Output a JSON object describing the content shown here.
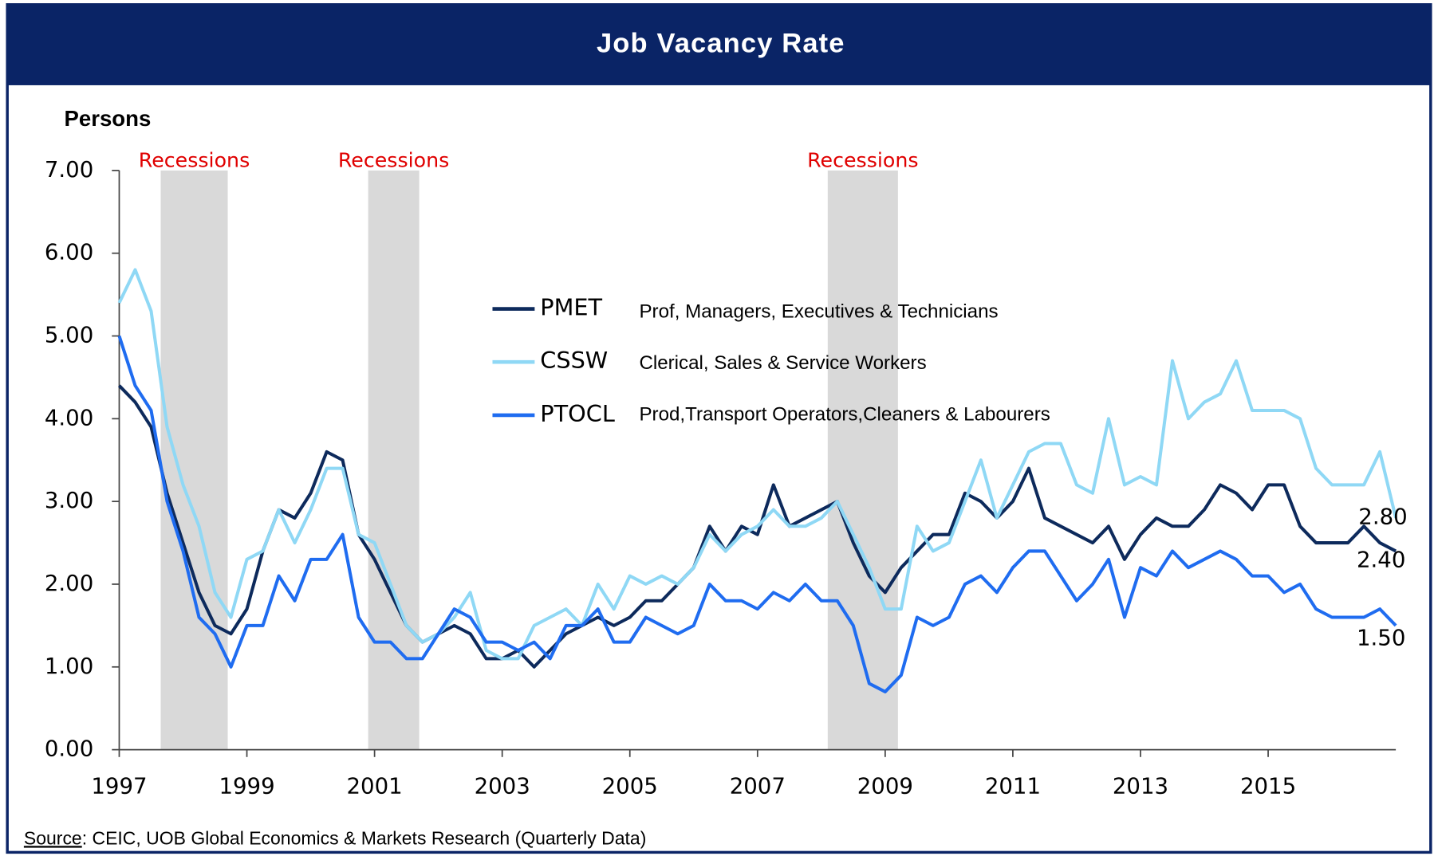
{
  "chart_data": {
    "type": "line",
    "title": "Job Vacancy Rate",
    "y_axis_label": "Persons",
    "source_label": "Source",
    "source_text": ": CEIC, UOB Global Economics & Markets Research (Quarterly Data)",
    "xlim": [
      1997,
      2017
    ],
    "xticks": [
      1997,
      1999,
      2001,
      2003,
      2005,
      2007,
      2009,
      2011,
      2013,
      2015
    ],
    "ylim": [
      0,
      7
    ],
    "yticks": [
      {
        "value": 0,
        "label": "0.00"
      },
      {
        "value": 1,
        "label": "1.00"
      },
      {
        "value": 2,
        "label": "2.00"
      },
      {
        "value": 3,
        "label": "3.00"
      },
      {
        "value": 4,
        "label": "4.00"
      },
      {
        "value": 5,
        "label": "5.00"
      },
      {
        "value": 6,
        "label": "6.00"
      },
      {
        "value": 7,
        "label": "7.00"
      }
    ],
    "recessions": [
      {
        "label": "Recessions",
        "start": 1997.65,
        "end": 1998.7
      },
      {
        "label": "Recessions",
        "start": 2000.9,
        "end": 2001.7
      },
      {
        "label": "Recessions",
        "start": 2008.1,
        "end": 2009.2
      }
    ],
    "x": [
      1997,
      1997.25,
      1997.5,
      1997.75,
      1998,
      1998.25,
      1998.5,
      1998.75,
      1999,
      1999.25,
      1999.5,
      1999.75,
      2000,
      2000.25,
      2000.5,
      2000.75,
      2001,
      2001.25,
      2001.5,
      2001.75,
      2002,
      2002.25,
      2002.5,
      2002.75,
      2003,
      2003.25,
      2003.5,
      2003.75,
      2004,
      2004.25,
      2004.5,
      2004.75,
      2005,
      2005.25,
      2005.5,
      2005.75,
      2006,
      2006.25,
      2006.5,
      2006.75,
      2007,
      2007.25,
      2007.5,
      2007.75,
      2008,
      2008.25,
      2008.5,
      2008.75,
      2009,
      2009.25,
      2009.5,
      2009.75,
      2010,
      2010.25,
      2010.5,
      2010.75,
      2011,
      2011.25,
      2011.5,
      2011.75,
      2012,
      2012.25,
      2012.5,
      2012.75,
      2013,
      2013.25,
      2013.5,
      2013.75,
      2014,
      2014.25,
      2014.5,
      2014.75,
      2015,
      2015.25,
      2015.5,
      2015.75,
      2016,
      2016.25,
      2016.5,
      2016.75,
      2017
    ],
    "series": [
      {
        "name": "PMET",
        "description": "Prof, Managers, Executives & Technicians",
        "color": "#0d2a5c",
        "end_label": "2.40",
        "values": [
          4.4,
          4.2,
          3.9,
          3.1,
          2.5,
          1.9,
          1.5,
          1.4,
          1.7,
          2.4,
          2.9,
          2.8,
          3.1,
          3.6,
          3.5,
          2.6,
          2.3,
          1.9,
          1.5,
          1.3,
          1.4,
          1.5,
          1.4,
          1.1,
          1.1,
          1.2,
          1.0,
          1.2,
          1.4,
          1.5,
          1.6,
          1.5,
          1.6,
          1.8,
          1.8,
          2.0,
          2.2,
          2.7,
          2.4,
          2.7,
          2.6,
          3.2,
          2.7,
          2.8,
          2.9,
          3.0,
          2.5,
          2.1,
          1.9,
          2.2,
          2.4,
          2.6,
          2.6,
          3.1,
          3.0,
          2.8,
          3.0,
          3.4,
          2.8,
          2.7,
          2.6,
          2.5,
          2.7,
          2.3,
          2.6,
          2.8,
          2.7,
          2.7,
          2.9,
          3.2,
          3.1,
          2.9,
          3.2,
          3.2,
          2.7,
          2.5,
          2.5,
          2.5,
          2.7,
          2.5,
          2.4
        ]
      },
      {
        "name": "CSSW",
        "description": "Clerical, Sales & Service Workers",
        "color": "#8fd8f5",
        "end_label": "2.80",
        "values": [
          5.4,
          5.8,
          5.3,
          3.9,
          3.2,
          2.7,
          1.9,
          1.6,
          2.3,
          2.4,
          2.9,
          2.5,
          2.9,
          3.4,
          3.4,
          2.6,
          2.5,
          2.0,
          1.5,
          1.3,
          1.4,
          1.6,
          1.9,
          1.2,
          1.1,
          1.1,
          1.5,
          1.6,
          1.7,
          1.5,
          2.0,
          1.7,
          2.1,
          2.0,
          2.1,
          2.0,
          2.2,
          2.6,
          2.4,
          2.6,
          2.7,
          2.9,
          2.7,
          2.7,
          2.8,
          3.0,
          2.6,
          2.2,
          1.7,
          1.7,
          2.7,
          2.4,
          2.5,
          3.0,
          3.5,
          2.8,
          3.2,
          3.6,
          3.7,
          3.7,
          3.2,
          3.1,
          4.0,
          3.2,
          3.3,
          3.2,
          4.7,
          4.0,
          4.2,
          4.3,
          4.7,
          4.1,
          4.1,
          4.1,
          4.0,
          3.4,
          3.2,
          3.2,
          3.2,
          3.6,
          2.8
        ]
      },
      {
        "name": "PTOCL",
        "description": "Prod,Transport Operators,Cleaners & Labourers",
        "color": "#1f6cf0",
        "end_label": "1.50",
        "values": [
          5.0,
          4.4,
          4.1,
          3.0,
          2.4,
          1.6,
          1.4,
          1.0,
          1.5,
          1.5,
          2.1,
          1.8,
          2.3,
          2.3,
          2.6,
          1.6,
          1.3,
          1.3,
          1.1,
          1.1,
          1.4,
          1.7,
          1.6,
          1.3,
          1.3,
          1.2,
          1.3,
          1.1,
          1.5,
          1.5,
          1.7,
          1.3,
          1.3,
          1.6,
          1.5,
          1.4,
          1.5,
          2.0,
          1.8,
          1.8,
          1.7,
          1.9,
          1.8,
          2.0,
          1.8,
          1.8,
          1.5,
          0.8,
          0.7,
          0.9,
          1.6,
          1.5,
          1.6,
          2.0,
          2.1,
          1.9,
          2.2,
          2.4,
          2.4,
          2.1,
          1.8,
          2.0,
          2.3,
          1.6,
          2.2,
          2.1,
          2.4,
          2.2,
          2.3,
          2.4,
          2.3,
          2.1,
          2.1,
          1.9,
          2.0,
          1.7,
          1.6,
          1.6,
          1.6,
          1.7,
          1.5
        ]
      }
    ]
  }
}
